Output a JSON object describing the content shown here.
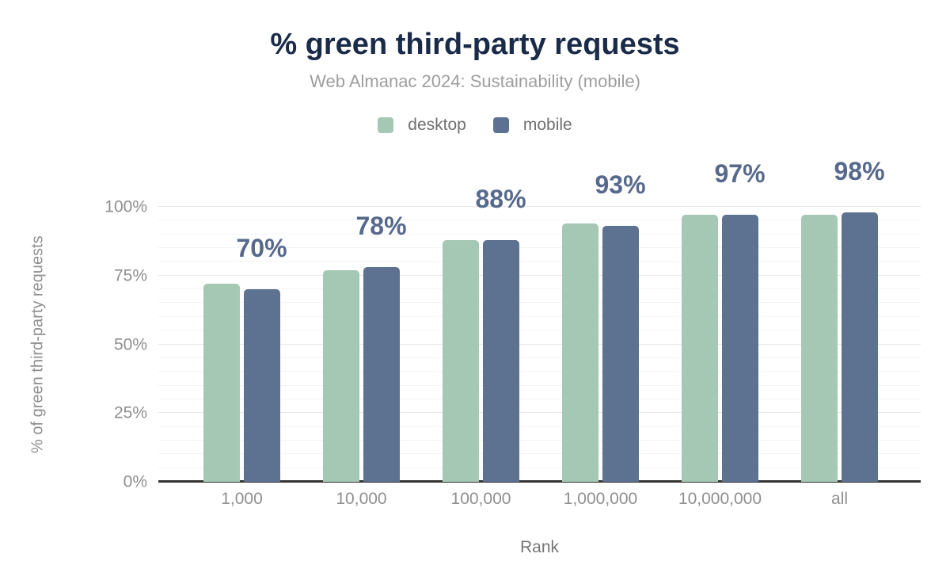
{
  "chart_data": {
    "type": "bar",
    "title": "% green third-party requests",
    "subtitle": "Web Almanac 2024: Sustainability (mobile)",
    "categories": [
      "1,000",
      "10,000",
      "100,000",
      "1,000,000",
      "10,000,000",
      "all"
    ],
    "series": [
      {
        "name": "desktop",
        "color": "#a5c8b4",
        "values": [
          72,
          77,
          88,
          94,
          97,
          97
        ]
      },
      {
        "name": "mobile",
        "color": "#5d7190",
        "values": [
          70,
          78,
          88,
          93,
          97,
          98
        ]
      }
    ],
    "bar_labels": {
      "series": "mobile",
      "labels": [
        "70%",
        "78%",
        "88%",
        "93%",
        "97%",
        "98%"
      ],
      "color": "#56698c"
    },
    "xlabel": "Rank",
    "ylabel": "% of green third-party requests",
    "ylim": [
      0,
      100
    ],
    "yticks": [
      0,
      25,
      50,
      75,
      100
    ],
    "ytick_suffix": "%",
    "minor_grid_step": 5,
    "grid": true,
    "legend_position": "top",
    "colors": {
      "title": "#1a2b49",
      "subtitle": "#9e9e9e",
      "tick_text": "#8f8f8f",
      "axis_line": "#333333",
      "minor_grid": "#f4f4f4",
      "major_grid": "#e8e8e8"
    }
  }
}
